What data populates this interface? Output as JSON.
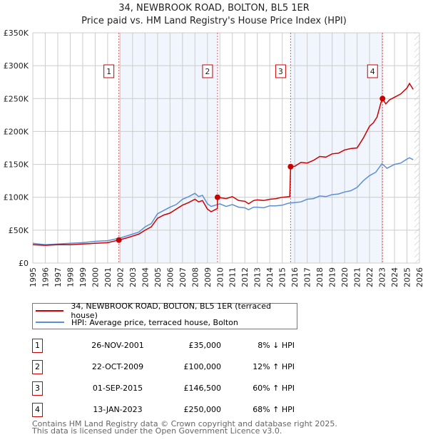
{
  "title": "34, NEWBROOK ROAD, BOLTON, BL5 1ER",
  "subtitle": "Price paid vs. HM Land Registry's House Price Index (HPI)",
  "chart_data": {
    "type": "line",
    "title": "34, NEWBROOK ROAD, BOLTON, BL5 1ER",
    "subtitle": "Price paid vs. HM Land Registry's House Price Index (HPI)",
    "xlim": [
      1995,
      2026
    ],
    "ylim": [
      0,
      350000
    ],
    "grid": true,
    "x_ticks": [
      "1995",
      "1996",
      "1997",
      "1998",
      "1999",
      "2000",
      "2001",
      "2002",
      "2003",
      "2004",
      "2005",
      "2006",
      "2007",
      "2008",
      "2009",
      "2010",
      "2011",
      "2012",
      "2013",
      "2014",
      "2015",
      "2016",
      "2017",
      "2018",
      "2019",
      "2020",
      "2021",
      "2022",
      "2023",
      "2024",
      "2025",
      "2026"
    ],
    "y_ticks": [
      {
        "v": 0,
        "label": "£0"
      },
      {
        "v": 50000,
        "label": "£50K"
      },
      {
        "v": 100000,
        "label": "£100K"
      },
      {
        "v": 150000,
        "label": "£150K"
      },
      {
        "v": 200000,
        "label": "£200K"
      },
      {
        "v": 250000,
        "label": "£250K"
      },
      {
        "v": 300000,
        "label": "£300K"
      },
      {
        "v": 350000,
        "label": "£350K"
      }
    ],
    "series": [
      {
        "name": "34, NEWBROOK ROAD, BOLTON, BL5 1ER (terraced house)",
        "color": "#cc0000",
        "x": [
          1995,
          1996,
          1997,
          1998,
          1999,
          2000,
          2001,
          2001.9,
          2002.5,
          2003,
          2003.5,
          2004,
          2004.5,
          2005,
          2005.5,
          2006,
          2006.5,
          2007,
          2007.5,
          2008,
          2008.3,
          2008.6,
          2009,
          2009.3,
          2009.8,
          2009.81,
          2010.5,
          2011,
          2011.5,
          2012,
          2012.3,
          2012.7,
          2013,
          2013.5,
          2014,
          2014.5,
          2015,
          2015.6,
          2015.67,
          2016,
          2016.5,
          2017,
          2017.5,
          2018,
          2018.5,
          2019,
          2019.5,
          2020,
          2020.5,
          2021,
          2021.5,
          2022,
          2022.3,
          2022.6,
          2022.9,
          2023.04,
          2023.3,
          2023.6,
          2024,
          2024.5,
          2025,
          2025.2,
          2025.5
        ],
        "y": [
          28000,
          27000,
          28000,
          28000,
          29000,
          30000,
          31000,
          35000,
          38000,
          41000,
          44000,
          50000,
          55000,
          68000,
          73000,
          76000,
          82000,
          88000,
          92000,
          97000,
          93000,
          95000,
          82000,
          78000,
          83000,
          100000,
          98000,
          101000,
          95000,
          94000,
          90000,
          95000,
          96000,
          95000,
          97000,
          98000,
          100000,
          101000,
          146500,
          147000,
          153000,
          152000,
          156000,
          162000,
          161000,
          166000,
          167000,
          172000,
          174000,
          175000,
          190000,
          208000,
          213000,
          222000,
          243000,
          250000,
          242000,
          248000,
          252000,
          257000,
          266000,
          273000,
          264000
        ]
      },
      {
        "name": "HPI: Average price, terraced house, Bolton",
        "color": "#5b8fd4",
        "x": [
          1995,
          1996,
          1997,
          1998,
          1999,
          2000,
          2001,
          2002,
          2003,
          2003.5,
          2004,
          2004.5,
          2005,
          2005.5,
          2006,
          2006.5,
          2007,
          2007.5,
          2008,
          2008.3,
          2008.6,
          2009,
          2009.3,
          2010,
          2010.5,
          2011,
          2011.5,
          2012,
          2012.3,
          2012.7,
          2013,
          2013.5,
          2014,
          2014.5,
          2015,
          2015.5,
          2016,
          2016.5,
          2017,
          2017.5,
          2018,
          2018.5,
          2019,
          2019.5,
          2020,
          2020.5,
          2021,
          2021.5,
          2022,
          2022.5,
          2023,
          2023.4,
          2023.8,
          2024,
          2024.5,
          2025,
          2025.2,
          2025.5
        ],
        "y": [
          30000,
          28000,
          29000,
          30000,
          31000,
          33000,
          34000,
          38000,
          44000,
          47000,
          55000,
          60000,
          75000,
          80000,
          85000,
          89000,
          97000,
          101000,
          106000,
          101000,
          103000,
          90000,
          86000,
          90000,
          86000,
          89000,
          85000,
          84000,
          81000,
          85000,
          85000,
          84000,
          87000,
          87000,
          88000,
          91000,
          92000,
          93000,
          97000,
          98000,
          102000,
          101000,
          104000,
          105000,
          108000,
          110000,
          115000,
          125000,
          133000,
          138000,
          151000,
          144000,
          148000,
          150000,
          152000,
          158000,
          160000,
          157000
        ]
      }
    ],
    "sales": [
      {
        "n": "1",
        "x": 2001.9,
        "y": 35000
      },
      {
        "n": "2",
        "x": 2009.81,
        "y": 100000
      },
      {
        "n": "3",
        "x": 2015.67,
        "y": 146500
      },
      {
        "n": "4",
        "x": 2023.04,
        "y": 250000
      }
    ],
    "shaded_ranges": [
      [
        2001.9,
        2009.81
      ],
      [
        2015.67,
        2023.04
      ]
    ],
    "hatched_from": 2025.6,
    "legend_placement": "below"
  },
  "legend": {
    "property": "34, NEWBROOK ROAD, BOLTON, BL5 1ER (terraced house)",
    "hpi": "HPI: Average price, terraced house, Bolton"
  },
  "transactions": [
    {
      "n": "1",
      "date": "26-NOV-2001",
      "price": "£35,000",
      "hpi": "8% ↓ HPI"
    },
    {
      "n": "2",
      "date": "22-OCT-2009",
      "price": "£100,000",
      "hpi": "12% ↑ HPI"
    },
    {
      "n": "3",
      "date": "01-SEP-2015",
      "price": "£146,500",
      "hpi": "60% ↑ HPI"
    },
    {
      "n": "4",
      "date": "13-JAN-2023",
      "price": "£250,000",
      "hpi": "68% ↑ HPI"
    }
  ],
  "footer": {
    "line1": "Contains HM Land Registry data © Crown copyright and database right 2025.",
    "line2": "This data is licensed under the Open Government Licence v3.0."
  }
}
